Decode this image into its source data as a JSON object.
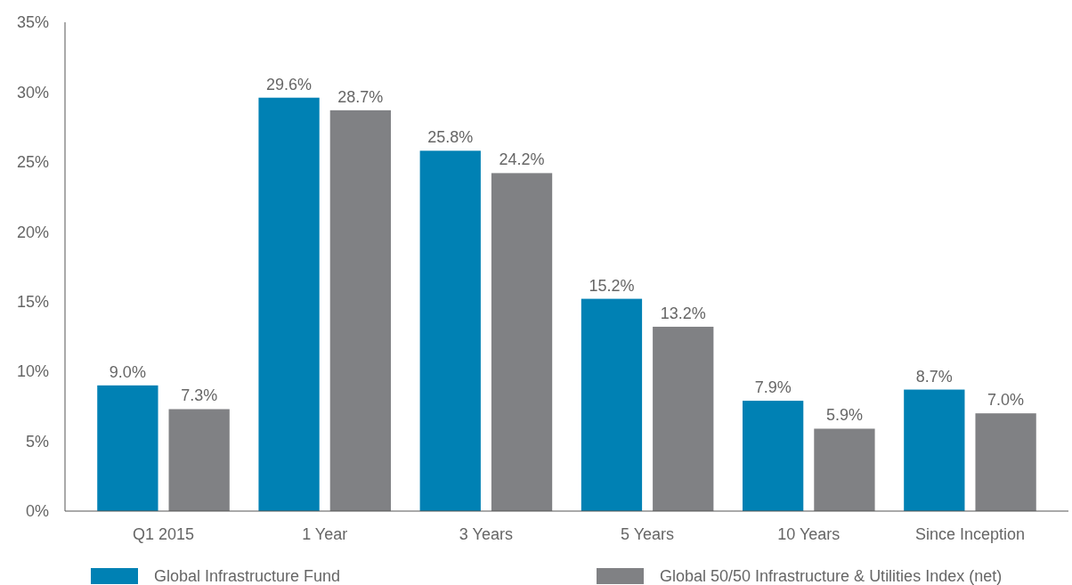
{
  "chart_data": {
    "type": "bar",
    "categories": [
      "Q1 2015",
      "1 Year",
      "3 Years",
      "5 Years",
      "10 Years",
      "Since Inception"
    ],
    "series": [
      {
        "name": "Global Infrastructure Fund",
        "color": "#0081b4",
        "values": [
          9.0,
          29.6,
          25.8,
          15.2,
          7.9,
          8.7
        ],
        "value_labels": [
          "9.0%",
          "29.6%",
          "25.8%",
          "15.2%",
          "7.9%",
          "8.7%"
        ]
      },
      {
        "name": "Global 50/50 Infrastructure & Utilities Index (net)",
        "color": "#808184",
        "values": [
          7.3,
          28.7,
          24.2,
          13.2,
          5.9,
          7.0
        ],
        "value_labels": [
          "7.3%",
          "28.7%",
          "24.2%",
          "13.2%",
          "5.9%",
          "7.0%"
        ]
      }
    ],
    "ylim": [
      0,
      35
    ],
    "yticks": [
      {
        "value": 0,
        "label": "0%"
      },
      {
        "value": 5,
        "label": "5%"
      },
      {
        "value": 10,
        "label": "10%"
      },
      {
        "value": 15,
        "label": "15%"
      },
      {
        "value": 20,
        "label": "20%"
      },
      {
        "value": 25,
        "label": "25%"
      },
      {
        "value": 30,
        "label": "30%"
      },
      {
        "value": 35,
        "label": "35%"
      }
    ],
    "grid": false,
    "legend": "bottom left"
  }
}
